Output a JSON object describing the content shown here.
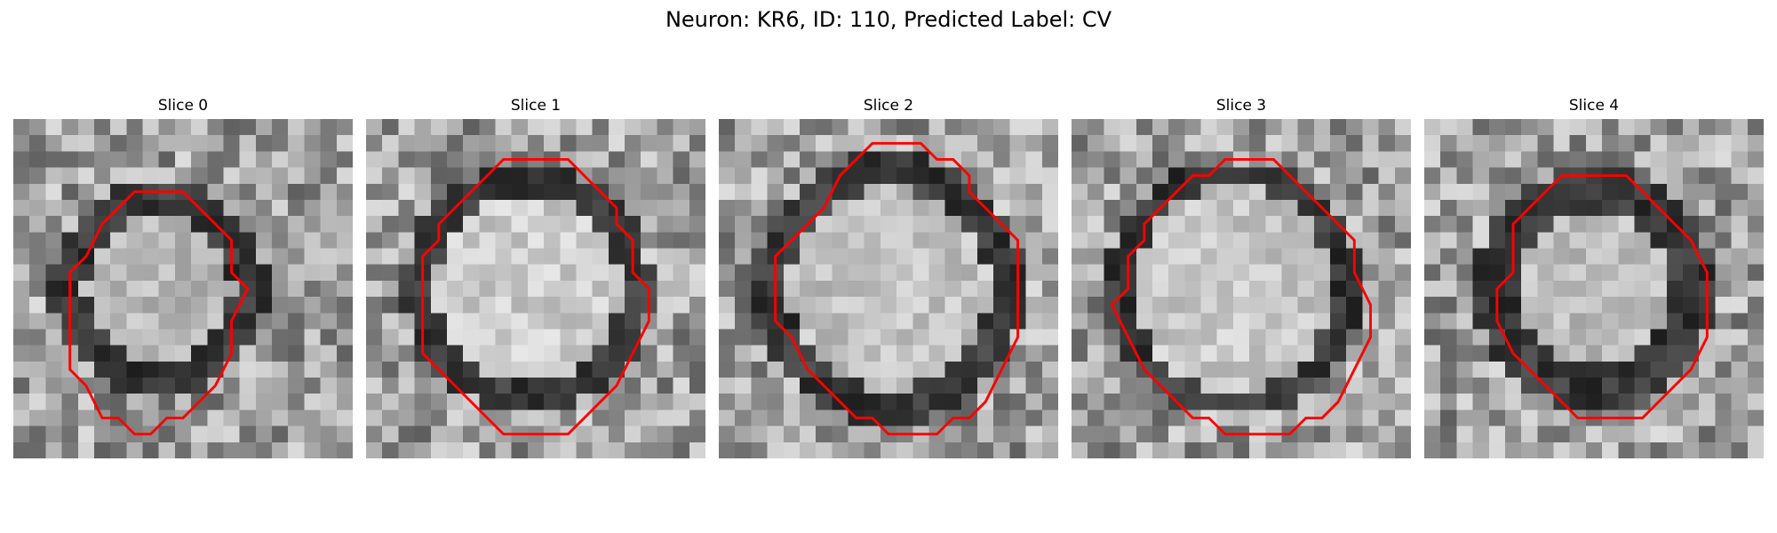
{
  "figure": {
    "title": "Neuron: KR6, ID: 110, Predicted Label: CV"
  },
  "colors": {
    "contour": "#ff0000",
    "background": "#ffffff"
  },
  "panels": [
    {
      "title": "Slice 0",
      "contour": [
        [
          4,
          8
        ],
        [
          5,
          6
        ],
        [
          6,
          5
        ],
        [
          7,
          4
        ],
        [
          8,
          4
        ],
        [
          9,
          4
        ],
        [
          10,
          4
        ],
        [
          11,
          5
        ],
        [
          12,
          6
        ],
        [
          13,
          7
        ],
        [
          13,
          8
        ],
        [
          13,
          9
        ],
        [
          14,
          10
        ],
        [
          13,
          12
        ],
        [
          13,
          14
        ],
        [
          12,
          16
        ],
        [
          11,
          17
        ],
        [
          10,
          18
        ],
        [
          9,
          18
        ],
        [
          8,
          19
        ],
        [
          7,
          19
        ],
        [
          6,
          18
        ],
        [
          5,
          18
        ],
        [
          4,
          16
        ],
        [
          3,
          15
        ],
        [
          3,
          13
        ],
        [
          3,
          11
        ],
        [
          3,
          9
        ]
      ]
    },
    {
      "title": "Slice 1",
      "contour": [
        [
          4,
          6
        ],
        [
          6,
          4
        ],
        [
          7,
          3
        ],
        [
          8,
          2
        ],
        [
          9,
          2
        ],
        [
          10,
          2
        ],
        [
          11,
          2
        ],
        [
          12,
          2
        ],
        [
          13,
          3
        ],
        [
          14,
          4
        ],
        [
          15,
          5
        ],
        [
          15,
          6
        ],
        [
          16,
          7
        ],
        [
          16,
          8
        ],
        [
          16,
          9
        ],
        [
          17,
          10
        ],
        [
          17,
          12
        ],
        [
          16,
          14
        ],
        [
          15,
          16
        ],
        [
          14,
          17
        ],
        [
          13,
          18
        ],
        [
          12,
          19
        ],
        [
          11,
          19
        ],
        [
          10,
          19
        ],
        [
          9,
          19
        ],
        [
          8,
          19
        ],
        [
          7,
          18
        ],
        [
          6,
          17
        ],
        [
          5,
          16
        ],
        [
          4,
          15
        ],
        [
          3,
          14
        ],
        [
          3,
          12
        ],
        [
          3,
          10
        ],
        [
          3,
          8
        ],
        [
          4,
          7
        ]
      ]
    },
    {
      "title": "Slice 2",
      "contour": [
        [
          5,
          6
        ],
        [
          6,
          5
        ],
        [
          7,
          3
        ],
        [
          8,
          2
        ],
        [
          9,
          1
        ],
        [
          10,
          1
        ],
        [
          11,
          1
        ],
        [
          12,
          1
        ],
        [
          13,
          2
        ],
        [
          14,
          2
        ],
        [
          15,
          3
        ],
        [
          15,
          4
        ],
        [
          16,
          5
        ],
        [
          18,
          7
        ],
        [
          18,
          9
        ],
        [
          18,
          11
        ],
        [
          18,
          13
        ],
        [
          17,
          15
        ],
        [
          16,
          17
        ],
        [
          15,
          18
        ],
        [
          14,
          18
        ],
        [
          13,
          19
        ],
        [
          12,
          19
        ],
        [
          11,
          19
        ],
        [
          10,
          19
        ],
        [
          9,
          18
        ],
        [
          8,
          18
        ],
        [
          7,
          17
        ],
        [
          6,
          16
        ],
        [
          5,
          15
        ],
        [
          4,
          13
        ],
        [
          3,
          12
        ],
        [
          3,
          10
        ],
        [
          3,
          8
        ],
        [
          4,
          7
        ]
      ]
    },
    {
      "title": "Slice 3",
      "contour": [
        [
          4,
          6
        ],
        [
          5,
          5
        ],
        [
          6,
          4
        ],
        [
          7,
          3
        ],
        [
          8,
          3
        ],
        [
          9,
          2
        ],
        [
          10,
          2
        ],
        [
          11,
          2
        ],
        [
          12,
          2
        ],
        [
          13,
          3
        ],
        [
          14,
          4
        ],
        [
          15,
          5
        ],
        [
          16,
          6
        ],
        [
          17,
          7
        ],
        [
          17,
          9
        ],
        [
          18,
          11
        ],
        [
          18,
          13
        ],
        [
          17,
          15
        ],
        [
          16,
          17
        ],
        [
          15,
          18
        ],
        [
          14,
          18
        ],
        [
          13,
          19
        ],
        [
          12,
          19
        ],
        [
          11,
          19
        ],
        [
          10,
          19
        ],
        [
          9,
          19
        ],
        [
          8,
          18
        ],
        [
          7,
          18
        ],
        [
          6,
          17
        ],
        [
          5,
          16
        ],
        [
          4,
          15
        ],
        [
          3,
          13
        ],
        [
          2,
          11
        ],
        [
          3,
          10
        ],
        [
          3,
          8
        ],
        [
          4,
          7
        ]
      ]
    },
    {
      "title": "Slice 4",
      "contour": [
        [
          5,
          6
        ],
        [
          6,
          5
        ],
        [
          7,
          4
        ],
        [
          8,
          3
        ],
        [
          9,
          3
        ],
        [
          10,
          3
        ],
        [
          11,
          3
        ],
        [
          12,
          3
        ],
        [
          13,
          4
        ],
        [
          14,
          5
        ],
        [
          15,
          6
        ],
        [
          16,
          7
        ],
        [
          17,
          9
        ],
        [
          17,
          11
        ],
        [
          17,
          13
        ],
        [
          16,
          15
        ],
        [
          15,
          16
        ],
        [
          14,
          17
        ],
        [
          13,
          18
        ],
        [
          12,
          18
        ],
        [
          11,
          18
        ],
        [
          10,
          18
        ],
        [
          9,
          18
        ],
        [
          8,
          17
        ],
        [
          7,
          16
        ],
        [
          6,
          15
        ],
        [
          5,
          14
        ],
        [
          4,
          12
        ],
        [
          4,
          10
        ],
        [
          5,
          9
        ],
        [
          5,
          7
        ]
      ]
    }
  ]
}
